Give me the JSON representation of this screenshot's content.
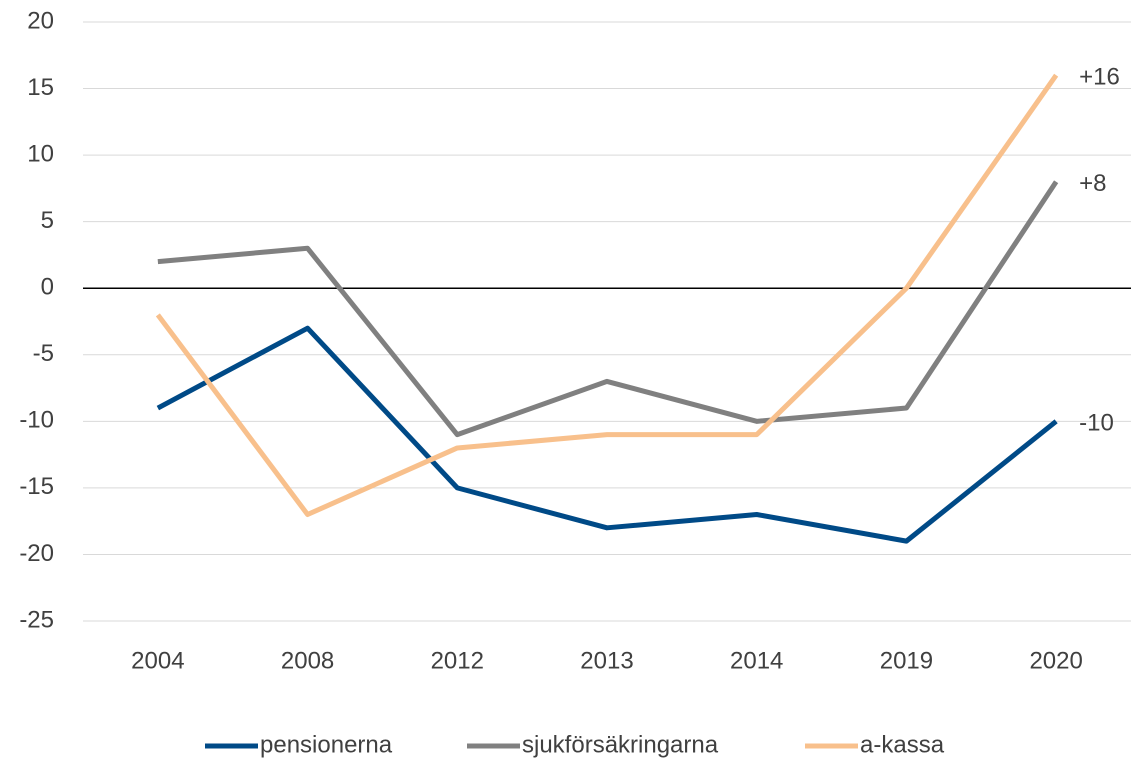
{
  "chart_data": {
    "type": "line",
    "categories": [
      "2004",
      "2008",
      "2012",
      "2013",
      "2014",
      "2019",
      "2020"
    ],
    "series": [
      {
        "name": "pensionerna",
        "color": "#004a87",
        "values": [
          -9,
          -3,
          -15,
          -18,
          -17,
          -19,
          -10
        ],
        "value_labels": [
          null,
          null,
          null,
          null,
          null,
          null,
          "-10"
        ]
      },
      {
        "name": "sjukförsäkringarna",
        "color": "#808080",
        "values": [
          2,
          3,
          -11,
          -7,
          -10,
          -9,
          8
        ],
        "value_labels": [
          null,
          null,
          null,
          null,
          null,
          null,
          "+8"
        ]
      },
      {
        "name": "a-kassa",
        "color": "#f8c08c",
        "values": [
          -2,
          -17,
          -12,
          -11,
          -11,
          0,
          16
        ],
        "value_labels": [
          null,
          null,
          null,
          null,
          null,
          null,
          "+16"
        ]
      }
    ],
    "ylim": [
      -25,
      20
    ],
    "yticks": [
      -25,
      -20,
      -15,
      -10,
      -5,
      0,
      5,
      10,
      15,
      20
    ],
    "grid": true,
    "legend": "bottom"
  }
}
